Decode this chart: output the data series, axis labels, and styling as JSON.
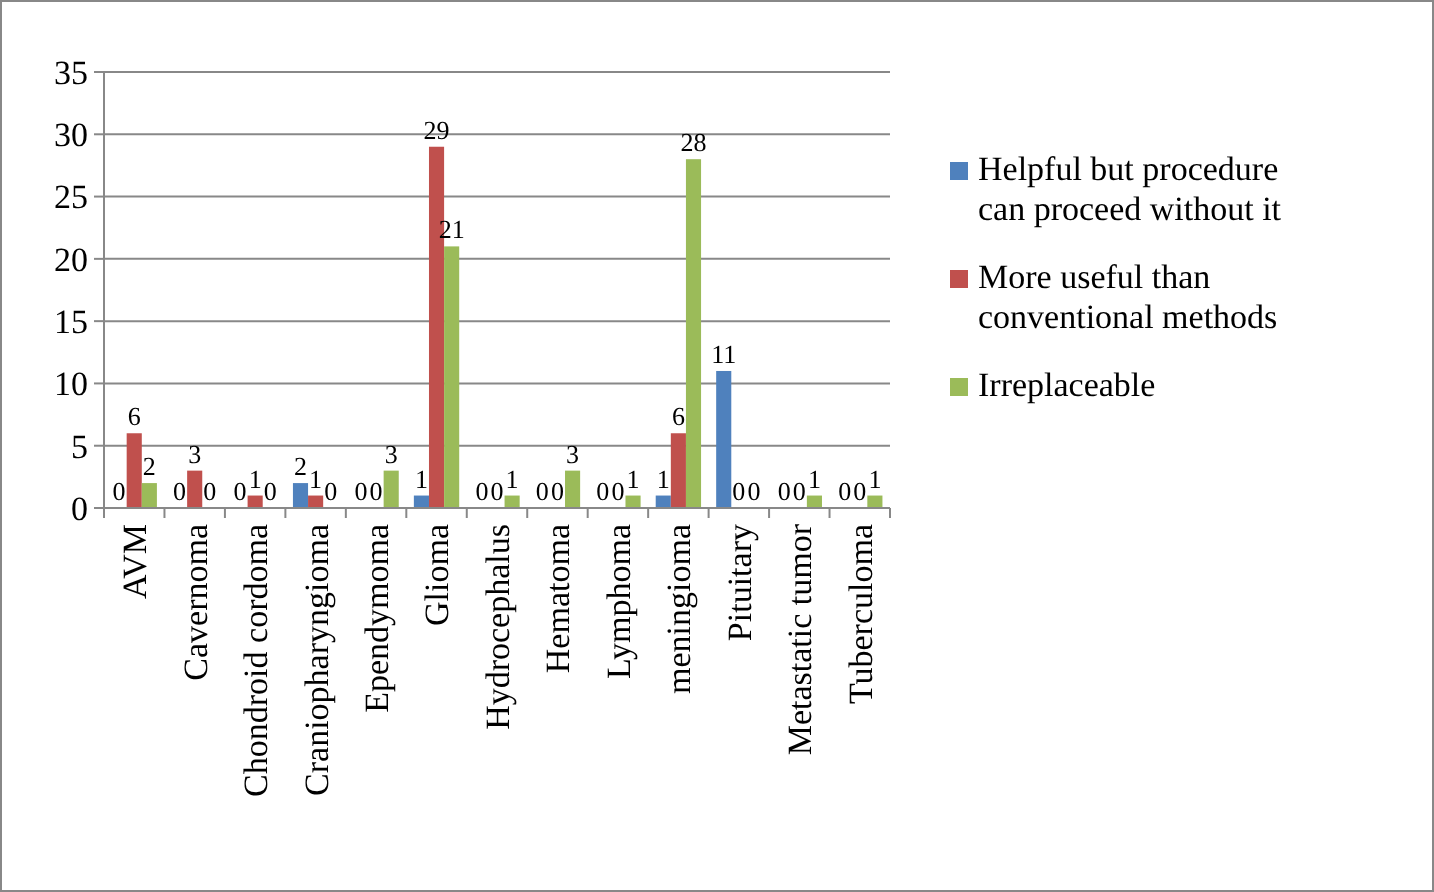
{
  "chart_data": {
    "type": "bar",
    "categories": [
      "AVM",
      "Cavernoma",
      "Chondroid cordoma",
      "Craniopharyngioma",
      "Ependymoma",
      "Glioma",
      "Hydrocephalus",
      "Hematoma",
      "Lymphoma",
      "meningioma",
      "Pituitary",
      "Metastatic tumor",
      "Tuberculoma"
    ],
    "series": [
      {
        "name": "Helpful but procedure can proceed without it",
        "color": "#4f81bd",
        "values": [
          0,
          0,
          0,
          2,
          0,
          1,
          0,
          0,
          0,
          1,
          11,
          0,
          0
        ]
      },
      {
        "name": "More useful than conventional methods",
        "color": "#c0504d",
        "values": [
          6,
          3,
          1,
          1,
          0,
          29,
          0,
          0,
          0,
          6,
          0,
          0,
          0
        ]
      },
      {
        "name": "Irreplaceable",
        "color": "#9bbb59",
        "values": [
          2,
          0,
          0,
          0,
          3,
          21,
          1,
          3,
          1,
          28,
          0,
          1,
          1
        ]
      }
    ],
    "ylim": [
      0,
      35
    ],
    "yticks": [
      0,
      5,
      10,
      15,
      20,
      25,
      30,
      35
    ],
    "grid": "y",
    "legend": "right",
    "data_labels": true
  }
}
